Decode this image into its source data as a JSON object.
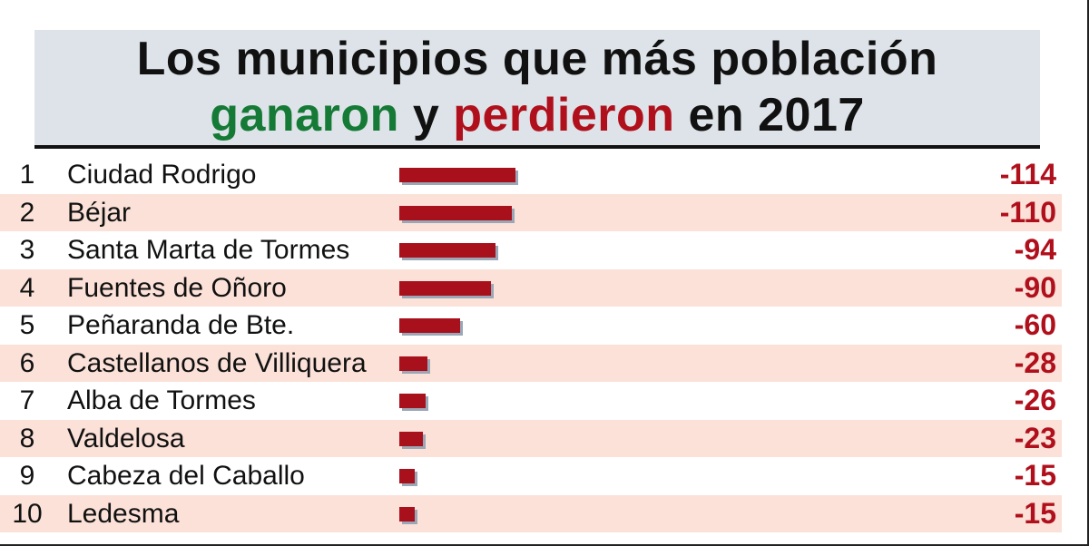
{
  "title": {
    "line1": "Los municipios que más población",
    "line2_part1": "ganaron",
    "line2_part2": "y",
    "line2_part3": "perdieron",
    "line2_part4": "en 2017"
  },
  "colors": {
    "green": "#157a36",
    "red": "#b0101c",
    "bar": "#a8101c",
    "row_shade": "#fbe1d8",
    "title_bg": "#dde3e8"
  },
  "chart_data": {
    "type": "bar",
    "orientation": "horizontal",
    "title": "Los municipios que más población ganaron y perdieron en 2017",
    "rows": [
      {
        "rank": "1",
        "name": "Ciudad Rodrigo",
        "value": -114,
        "label": "-114"
      },
      {
        "rank": "2",
        "name": "Béjar",
        "value": -110,
        "label": "-110"
      },
      {
        "rank": "3",
        "name": "Santa Marta de Tormes",
        "value": -94,
        "label": "-94"
      },
      {
        "rank": "4",
        "name": "Fuentes de Oñoro",
        "value": -90,
        "label": "-90"
      },
      {
        "rank": "5",
        "name": "Peñaranda de Bte.",
        "value": -60,
        "label": "-60"
      },
      {
        "rank": "6",
        "name": "Castellanos de Villiquera",
        "value": -28,
        "label": "-28"
      },
      {
        "rank": "7",
        "name": "Alba de Tormes",
        "value": -26,
        "label": "-26"
      },
      {
        "rank": "8",
        "name": "Valdelosa",
        "value": -23,
        "label": "-23"
      },
      {
        "rank": "9",
        "name": "Cabeza del Caballo",
        "value": -15,
        "label": "-15"
      },
      {
        "rank": "10",
        "name": "Ledesma",
        "value": -15,
        "label": "-15"
      }
    ]
  }
}
